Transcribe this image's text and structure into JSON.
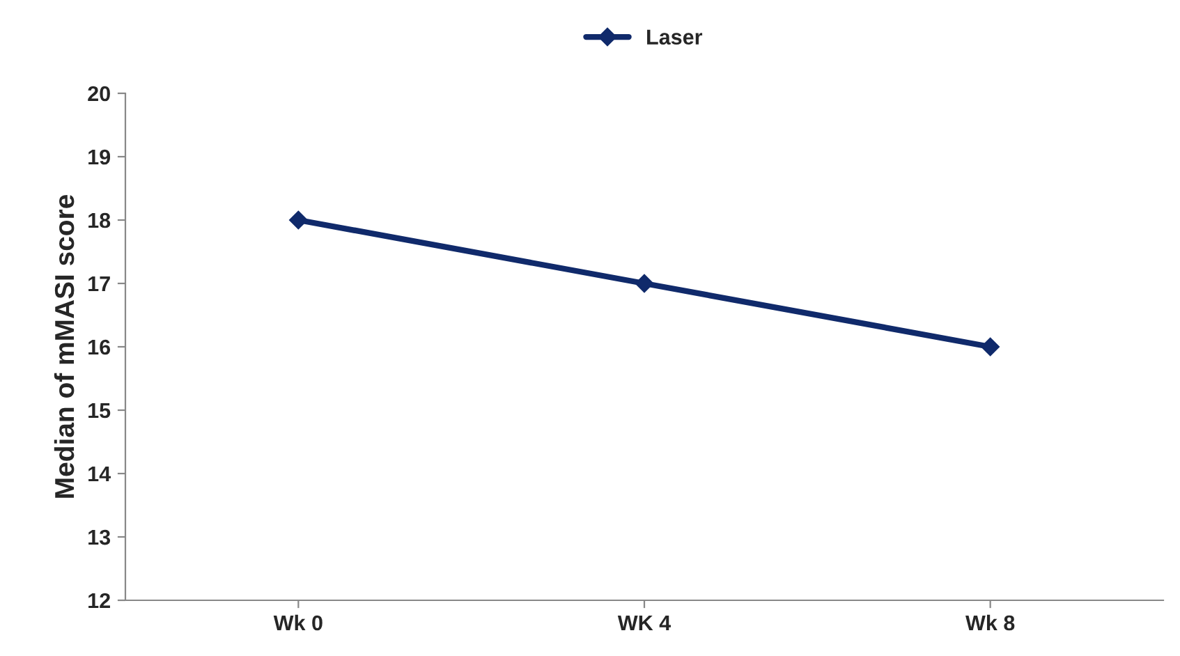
{
  "chart_data": {
    "type": "line",
    "ylabel": "Median of mMASI score",
    "categories": [
      "Wk 0",
      "WK 4",
      "Wk 8"
    ],
    "series": [
      {
        "name": "Laser",
        "color": "#102a6b",
        "values": [
          18,
          17,
          16
        ]
      }
    ],
    "ylim": [
      12,
      20
    ],
    "yticks": [
      12,
      13,
      14,
      15,
      16,
      17,
      18,
      19,
      20
    ],
    "grid": false,
    "legend": "top",
    "marker": "diamond",
    "line_style": "solid"
  }
}
